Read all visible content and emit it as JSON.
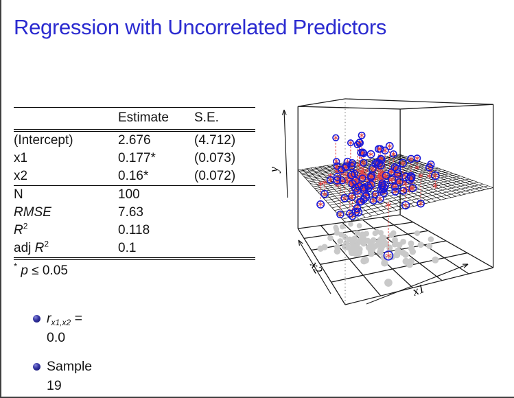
{
  "slide": {
    "title": "Regression with Uncorrelated Predictors",
    "title_color": "#2b2bd0"
  },
  "table": {
    "headers": {
      "col1": "",
      "col2": "Estimate",
      "col3": "S.E."
    },
    "coef_rows": [
      {
        "label": "(Intercept)",
        "estimate": "2.676",
        "se": "(4.712)"
      },
      {
        "label": "x1",
        "estimate": "0.177*",
        "se": "(0.073)"
      },
      {
        "label": "x2",
        "estimate": "0.16*",
        "se": "(0.072)"
      }
    ],
    "stat_rows": [
      {
        "pre": "N",
        "base": "",
        "sup": "",
        "value": "100"
      },
      {
        "pre": "",
        "base": "RMSE",
        "sup": "",
        "value": "7.63"
      },
      {
        "pre": "",
        "base": "R",
        "sup": "2",
        "value": "0.118"
      },
      {
        "pre": "adj ",
        "base": "R",
        "sup": "2",
        "value": "0.1"
      }
    ],
    "footnote": {
      "marker": "*",
      "var": "p",
      "rest": " ≤ 0.05"
    }
  },
  "bullets": {
    "item1": {
      "var": "r",
      "sub": "x1,x2",
      "eq": " =",
      "line2": "0.0"
    },
    "item2": {
      "line1": "Sample",
      "line2": "19"
    }
  },
  "chart_data": {
    "type": "scatter3d",
    "axis_labels": {
      "vertical": "y",
      "floor_right": "x1",
      "floor_left": "x2"
    },
    "n_points": 100,
    "sample_id": 19,
    "correlation_x1_x2": 0.0,
    "regression_plane_norm": {
      "b0": 0.4,
      "b1": 0.09,
      "b2": 0.08
    },
    "cluster_norm": {
      "x1_mean": 0.46,
      "x1_sd": 0.17,
      "x2_mean": 0.5,
      "x2_sd": 0.17,
      "resid_sd": 0.13
    },
    "floor_grid_cells": 5,
    "plane_mesh_cells": 27,
    "elements": [
      "bounding-box",
      "fitted-plane-mesh",
      "blue-circle-data-points",
      "red-dashed-residual-lines",
      "red-asterisk-fitted-points",
      "gray-floor-projection-points",
      "axis-arrows"
    ],
    "colors": {
      "points": "#1818d8",
      "residuals": "#e04444",
      "floor_points": "#c9c9c9",
      "wireframe": "#1a1a1a"
    }
  }
}
